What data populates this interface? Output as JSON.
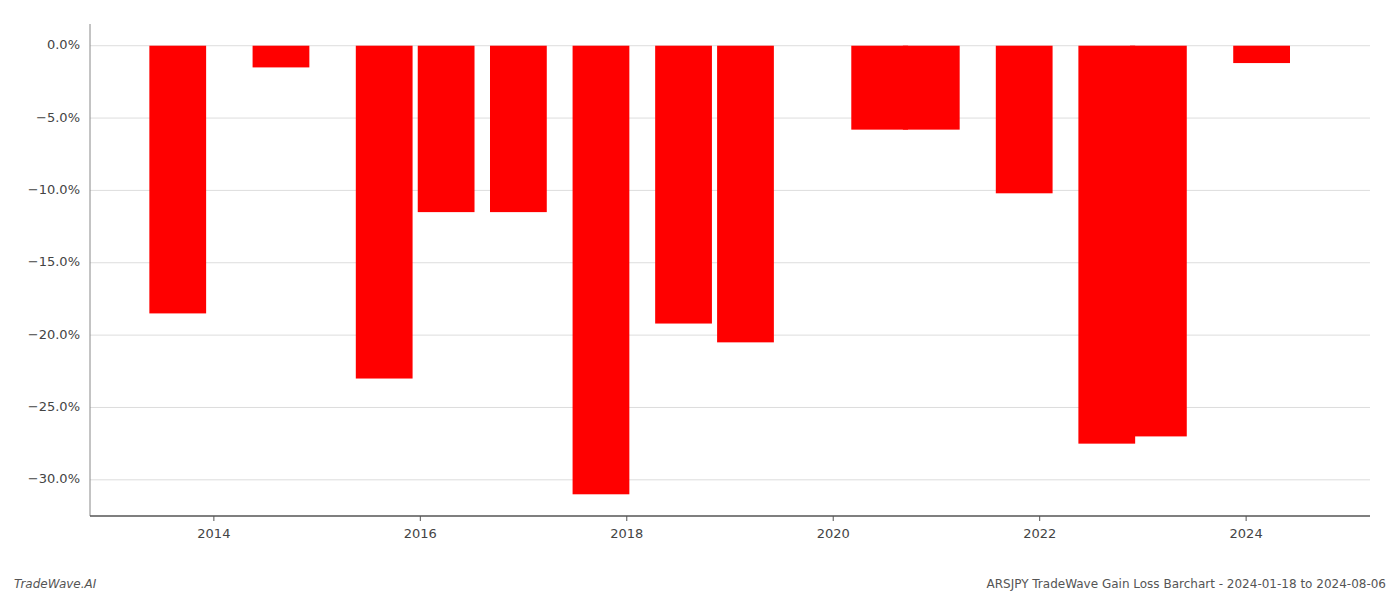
{
  "chart_data": {
    "type": "bar",
    "x": [
      2013.65,
      2014.65,
      2015.65,
      2016.25,
      2016.95,
      2017.75,
      2018.55,
      2019.15,
      2020.45,
      2020.95,
      2021.85,
      2022.65,
      2023.15,
      2024.15
    ],
    "values": [
      -18.5,
      -1.5,
      -23.0,
      -11.5,
      -11.5,
      -31.0,
      -19.2,
      -20.5,
      -5.8,
      -5.8,
      -10.2,
      -27.5,
      -27.0,
      -1.2
    ],
    "color": "#ff0000",
    "xlim": [
      2012.8,
      2025.2
    ],
    "xticks": [
      2014,
      2016,
      2018,
      2020,
      2022,
      2024
    ],
    "ylim": [
      -32.5,
      1.5
    ],
    "yticks": [
      {
        "value": 0.0,
        "label": "0.0%"
      },
      {
        "value": -5.0,
        "label": "−5.0%"
      },
      {
        "value": -10.0,
        "label": "−10.0%"
      },
      {
        "value": -15.0,
        "label": "−15.0%"
      },
      {
        "value": -20.0,
        "label": "−20.0%"
      },
      {
        "value": -25.0,
        "label": "−25.0%"
      },
      {
        "value": -30.0,
        "label": "−30.0%"
      }
    ],
    "grid": true,
    "annotations": [
      "TradeWave.AI",
      "ARSJPY TradeWave Gain Loss Barchart - 2024-01-18 to 2024-08-06"
    ]
  }
}
